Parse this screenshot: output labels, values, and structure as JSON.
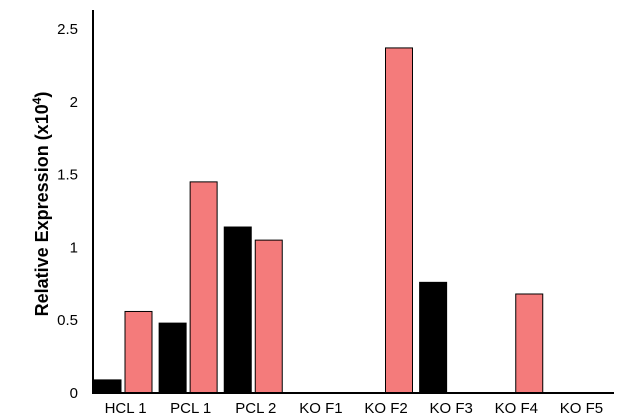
{
  "chart_data": {
    "type": "bar",
    "categories": [
      "HCL 1",
      "PCL 1",
      "PCL 2",
      "KO F1",
      "KO F2",
      "KO F3",
      "KO F4",
      "KO F5"
    ],
    "series": [
      {
        "values": [
          0.09,
          0.48,
          1.14,
          0,
          0,
          0.76,
          0,
          0
        ]
      },
      {
        "values": [
          0.56,
          1.45,
          1.05,
          0,
          2.37,
          0,
          0.68,
          0
        ]
      }
    ],
    "colors": [
      "#000000",
      "#f47b7b"
    ],
    "bar_stroke": "#000000",
    "ylabel": "Relative Expression (x10",
    "ylabel_superscript": "4",
    "ylabel_suffix": ")",
    "ylim": [
      0,
      2.5
    ],
    "yticks": [
      "0",
      "0.5",
      "1",
      "1.5",
      "2",
      "2.5"
    ],
    "ytick_values": [
      0,
      0.5,
      1,
      1.5,
      2,
      2.5
    ],
    "grid": false,
    "legend": "none"
  }
}
